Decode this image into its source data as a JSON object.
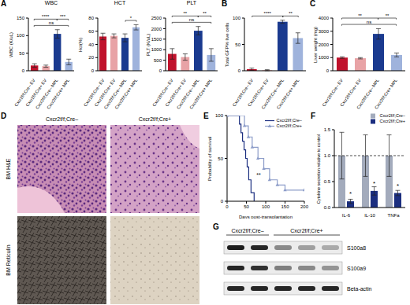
{
  "panel_labels": [
    "A",
    "B",
    "C",
    "D",
    "E",
    "F",
    "G"
  ],
  "chart_data": [
    {
      "type": "bar",
      "title": "WBC",
      "y_label": "WBC (K/uL)",
      "categories": [
        "Cxcr2f/f;Cre– EV",
        "Cxcr2f/f;Cre+ EV",
        "Cxcr2f/f;Cre– MPL",
        "Cxcr2f/f;Cre+ MPL"
      ],
      "values": [
        15,
        13,
        105,
        25
      ],
      "errors": [
        5,
        3,
        12,
        8
      ],
      "colors": [
        "#c0122c",
        "#e8a3a6",
        "#1a3a8f",
        "#9fb3dc"
      ],
      "ylim": [
        0,
        150
      ],
      "yticks": [
        0,
        50,
        100,
        150
      ],
      "significance": [
        {
          "from": 0,
          "to": 3,
          "label": "ns"
        },
        {
          "from": 0,
          "to": 2,
          "label": "****"
        },
        {
          "from": 2,
          "to": 3,
          "label": "***"
        }
      ]
    },
    {
      "type": "bar",
      "title": "HCT",
      "y_label": "Hct(%)",
      "categories": [
        "Cxcr2f/f;Cre– EV",
        "Cxcr2f/f;Cre+ EV",
        "Cxcr2f/f;Cre– MPL",
        "Cxcr2f/f;Cre+ MPL"
      ],
      "values": [
        52,
        53,
        50,
        66
      ],
      "errors": [
        5,
        3,
        6,
        4
      ],
      "colors": [
        "#c0122c",
        "#e8a3a6",
        "#1a3a8f",
        "#9fb3dc"
      ],
      "ylim": [
        0,
        80
      ],
      "yticks": [
        0,
        20,
        40,
        60,
        80
      ],
      "significance": [
        {
          "from": 2,
          "to": 3,
          "label": "*"
        }
      ]
    },
    {
      "type": "bar",
      "title": "PLT",
      "y_label": "PLT (K/uL)",
      "categories": [
        "Cxcr2f/f;Cre– EV",
        "Cxcr2f/f;Cre+ EV",
        "Cxcr2f/f;Cre– MPL",
        "Cxcr2f/f;Cre+ MPL"
      ],
      "values": [
        800,
        650,
        1900,
        750
      ],
      "errors": [
        250,
        150,
        200,
        300
      ],
      "colors": [
        "#c0122c",
        "#e8a3a6",
        "#1a3a8f",
        "#9fb3dc"
      ],
      "ylim": [
        0,
        2500
      ],
      "yticks": [
        0,
        500,
        1000,
        1500,
        2000,
        2500
      ],
      "significance": [
        {
          "from": 0,
          "to": 3,
          "label": "ns"
        },
        {
          "from": 0,
          "to": 2,
          "label": "**"
        },
        {
          "from": 2,
          "to": 3,
          "label": "**"
        }
      ]
    },
    {
      "type": "bar",
      "y_label": "Total GFP% live cells",
      "categories": [
        "Cxcr2f/f;Cre– EV",
        "Cxcr2f/f;Cre+ EV",
        "Cxcr2f/f;Cre– MPL",
        "Cxcr2f/f;Cre+ MPL"
      ],
      "values": [
        3,
        1,
        93,
        62
      ],
      "errors": [
        2,
        1,
        3,
        10
      ],
      "colors": [
        "#c0122c",
        "#e8a3a6",
        "#1a3a8f",
        "#9fb3dc"
      ],
      "ylim": [
        0,
        100
      ],
      "yticks": [
        0,
        50,
        100
      ],
      "significance": [
        {
          "from": 0,
          "to": 2,
          "label": "****"
        },
        {
          "from": 2,
          "to": 3,
          "label": "**"
        }
      ]
    },
    {
      "type": "bar",
      "y_label": "Liver weight (mg)",
      "categories": [
        "Cxcr2f/f;Cre– EV",
        "Cxcr2f/f;Cre+ EV",
        "Cxcr2f/f;Cre– MPL",
        "Cxcr2f/f;Cre+ MPL"
      ],
      "values": [
        1000,
        950,
        2800,
        1200
      ],
      "errors": [
        60,
        50,
        400,
        150
      ],
      "colors": [
        "#c0122c",
        "#e8a3a6",
        "#1a3a8f",
        "#9fb3dc"
      ],
      "ylim": [
        0,
        4000
      ],
      "yticks": [
        0,
        1000,
        2000,
        3000,
        4000
      ],
      "significance": [
        {
          "from": 0,
          "to": 3,
          "label": "ns"
        },
        {
          "from": 0,
          "to": 2,
          "label": "**"
        },
        {
          "from": 2,
          "to": 3,
          "label": "**"
        }
      ]
    },
    {
      "type": "line",
      "x_label": "Days post-transplantation",
      "y_label": "Probability of survival",
      "xlim": [
        0,
        200
      ],
      "xticks": [
        0,
        50,
        100,
        150,
        200
      ],
      "ylim": [
        0,
        100
      ],
      "yticks": [
        0,
        50,
        100
      ],
      "legend": "upper right",
      "annotations": [
        "**"
      ],
      "series": [
        {
          "name": "Cxcr2f/f;Cre–",
          "color": "#1c2f80",
          "x": [
            0,
            32,
            36,
            40,
            44,
            48,
            52,
            56,
            62,
            70
          ],
          "values": [
            100,
            90,
            80,
            70,
            60,
            50,
            40,
            25,
            10,
            0
          ],
          "marker": "none",
          "line_style": "solid"
        },
        {
          "name": "Cxcr2f/f;Cre+",
          "color": "#8d9dc9",
          "x": [
            0,
            45,
            55,
            65,
            80,
            95,
            110,
            130,
            150,
            200
          ],
          "values": [
            100,
            88,
            75,
            63,
            50,
            38,
            25,
            19,
            13,
            13
          ],
          "marker": "triangle",
          "line_style": "solid"
        }
      ]
    },
    {
      "type": "bar",
      "y_label": "Cytokine secretion relative to control",
      "categories": [
        "IL-6",
        "IL-10",
        "TNFa"
      ],
      "ylim": [
        0,
        1.5
      ],
      "yticks": [
        {
          "value": 0,
          "label": "0.0"
        },
        0.5,
        {
          "value": 1,
          "label": "1.0"
        },
        1.5
      ],
      "legend": "upper right",
      "reference_line": 1,
      "series": [
        {
          "name": "Cxcr2f/f;Cre–",
          "color": "#a3abbc",
          "values": [
            1,
            1,
            1
          ],
          "errors": [
            0.45,
            0.4,
            0.4
          ]
        },
        {
          "name": "Cxcr2f/f;Cre+",
          "color": "#1c2f80",
          "values": [
            0.12,
            0.32,
            0.28
          ],
          "errors": [
            0.04,
            0.08,
            0.05
          ],
          "significance": [
            "*",
            "*",
            "*"
          ]
        }
      ]
    }
  ],
  "histology": {
    "columns": [
      "Cxcr2f/f;Cre–",
      "Cxcr2f/f;Cre+"
    ],
    "rows": [
      "BM H&E",
      "BM Reticulin"
    ]
  },
  "western_blot": {
    "groups": [
      {
        "label": "Cxcr2f/f;Cre–",
        "lanes": 2
      },
      {
        "label": "Cxcr2f/f;Cre+",
        "lanes": 3
      }
    ],
    "rows": [
      "S100a8",
      "S100a9",
      "Beta-actin"
    ]
  }
}
